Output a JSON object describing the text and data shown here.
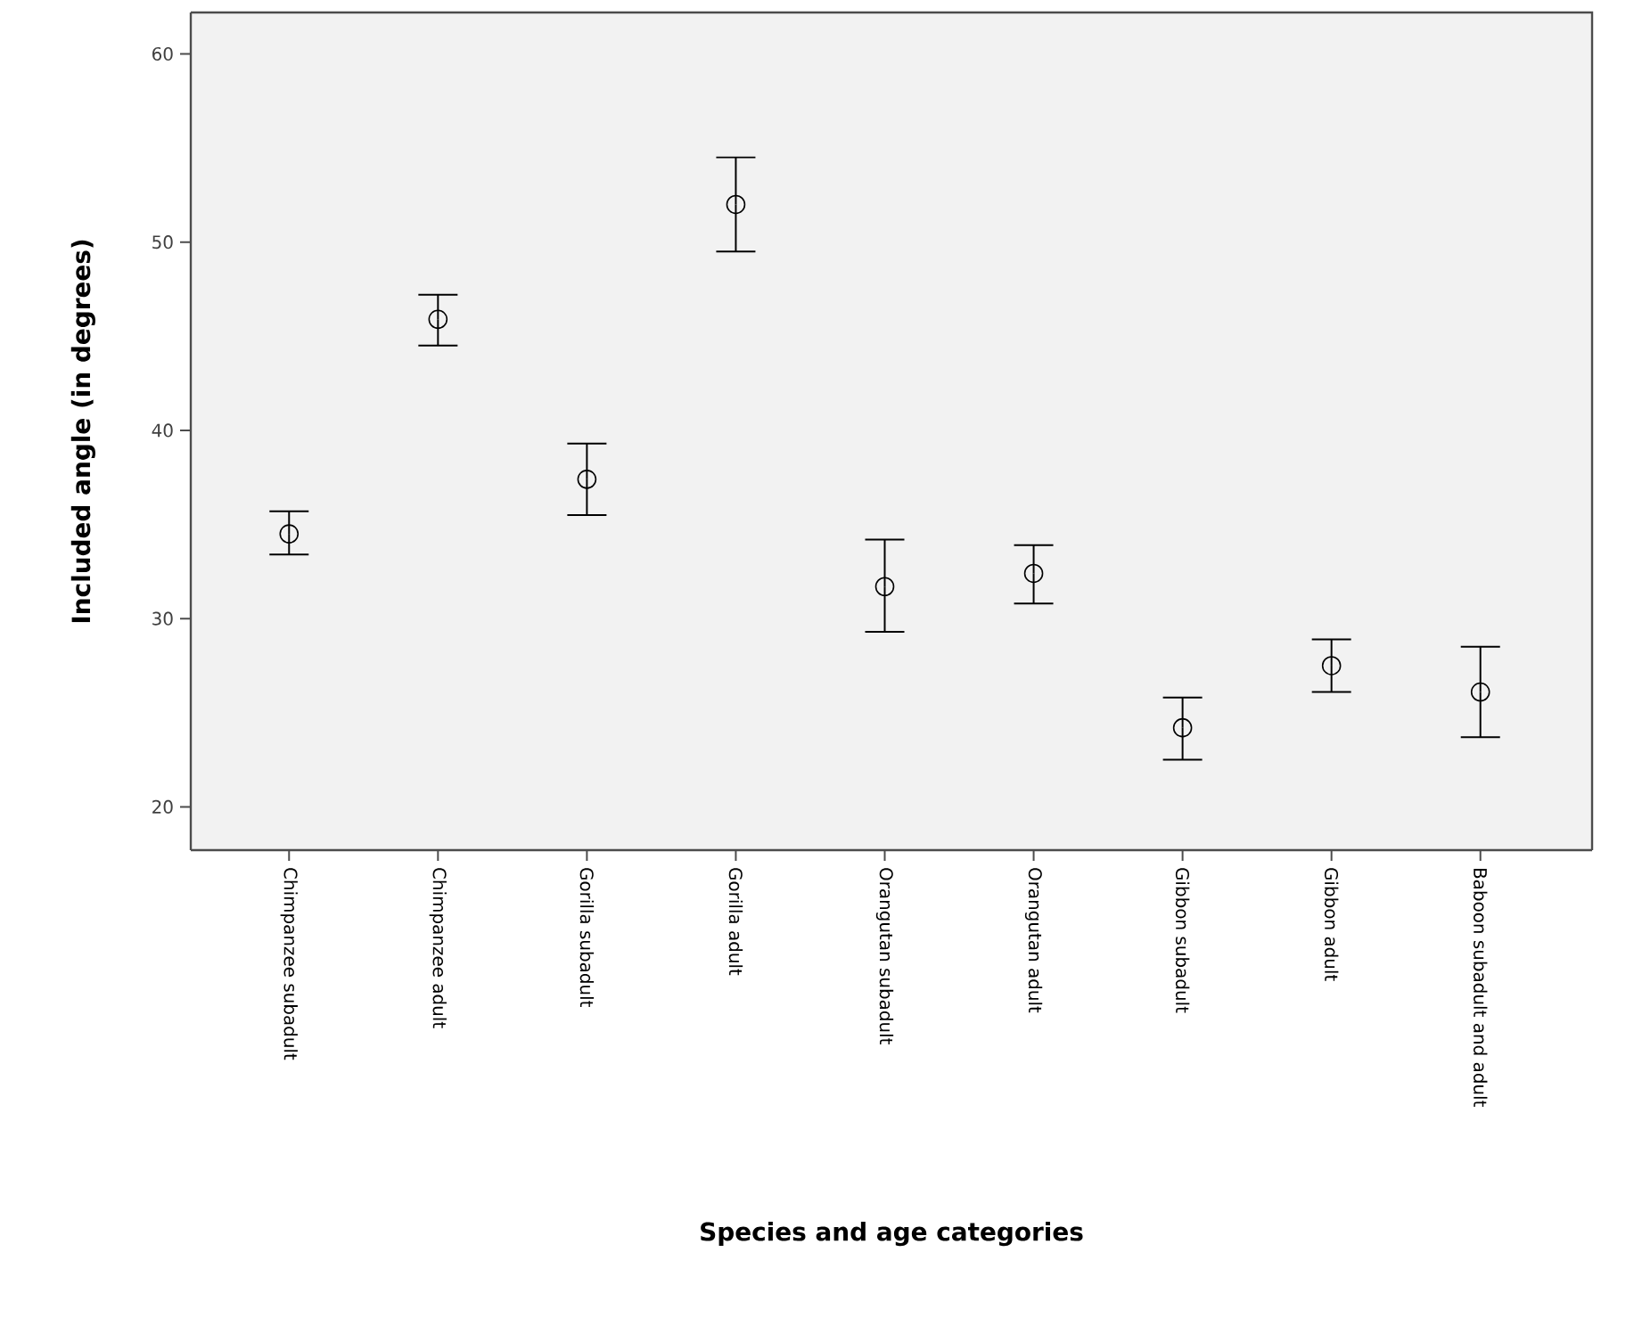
{
  "chart_data": {
    "type": "scatter",
    "xlabel": "Species and age categories",
    "ylabel": "Included angle (in degrees)",
    "categories": [
      "Chimpanzee subadult",
      "Chimpanzee adult",
      "Gorilla subadult",
      "Gorilla adult",
      "Orangutan subadult",
      "Orangutan adult",
      "Gibbon subadult",
      "Gibbon adult",
      "Baboon subadult and adult"
    ],
    "values": [
      34.5,
      45.9,
      37.4,
      52.0,
      31.7,
      32.4,
      24.2,
      27.5,
      26.1
    ],
    "errors": [
      [
        33.4,
        35.7
      ],
      [
        44.5,
        47.2
      ],
      [
        35.5,
        39.3
      ],
      [
        49.5,
        54.5
      ],
      [
        29.3,
        34.2
      ],
      [
        30.8,
        33.9
      ],
      [
        22.5,
        25.8
      ],
      [
        26.1,
        28.9
      ],
      [
        23.7,
        28.5
      ]
    ],
    "color": "#000000",
    "marker": "circle",
    "ylim": [
      17.7,
      62.2
    ],
    "yticks": [
      20,
      30,
      40,
      50,
      60
    ],
    "grid": false
  }
}
